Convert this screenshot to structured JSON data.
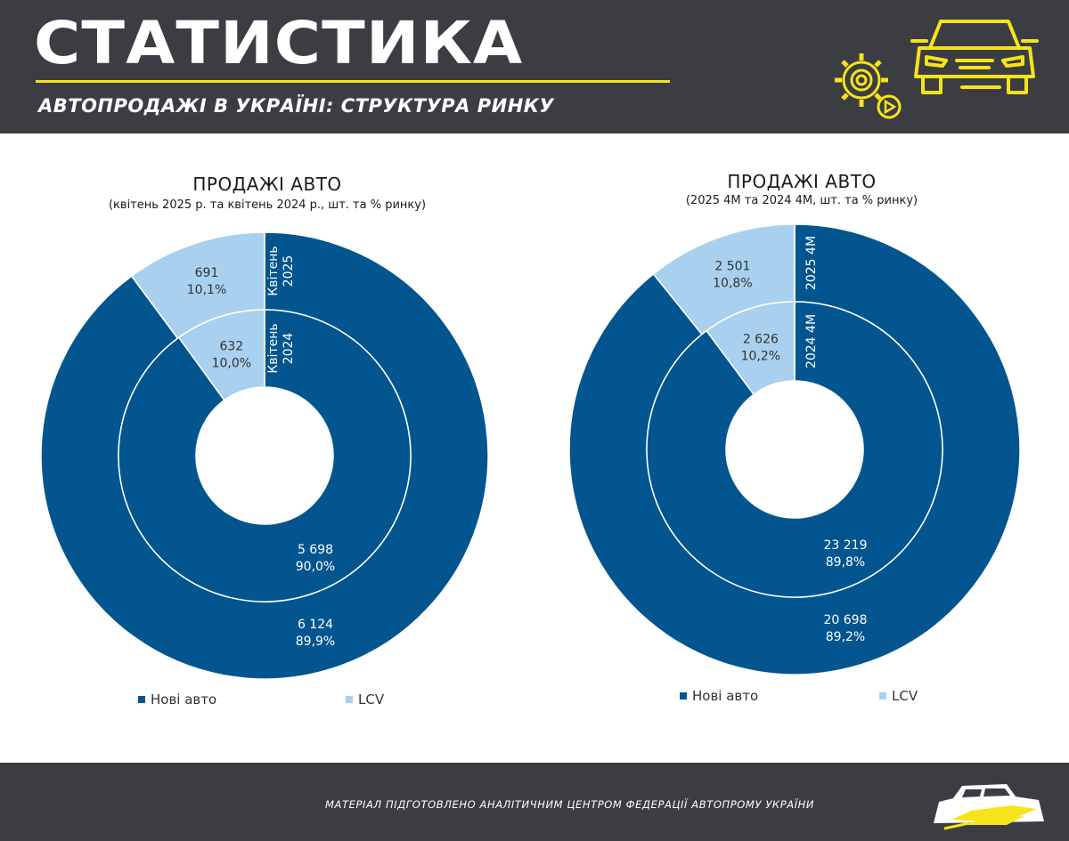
{
  "header": {
    "title": "СТАТИСТИКА",
    "subtitle": "АВТОПРОДАЖІ В УКРАЇНІ: СТРУКТУРА РИНКУ",
    "icons": [
      "gear-play-icon",
      "car-front-icon"
    ],
    "accent_color": "#f6e31a",
    "background_color": "#3b3d42"
  },
  "legend": {
    "new_cars": "Нові авто",
    "lcv": "LCV",
    "new_cars_color": "#02558f",
    "lcv_color": "#a9d0ef"
  },
  "chart_data": [
    {
      "type": "donut",
      "title": "ПРОДАЖІ АВТО",
      "subtitle": "(квітень 2025 р. та квітень 2024 р., шт. та % ринку)",
      "rings": [
        {
          "name": "Квітень 2025",
          "position": "outer",
          "slices": [
            {
              "category": "Нові авто",
              "value": 6124,
              "value_label": "6 124",
              "percent_label": "89,9%"
            },
            {
              "category": "LCV",
              "value": 691,
              "value_label": "691",
              "percent_label": "10,1%"
            }
          ]
        },
        {
          "name": "Квітень 2024",
          "position": "inner",
          "slices": [
            {
              "category": "Нові авто",
              "value": 5698,
              "value_label": "5 698",
              "percent_label": "90,0%"
            },
            {
              "category": "LCV",
              "value": 632,
              "value_label": "632",
              "percent_label": "10,0%"
            }
          ]
        }
      ],
      "legend": [
        "Нові авто",
        "LCV"
      ]
    },
    {
      "type": "donut",
      "title": "ПРОДАЖІ АВТО",
      "subtitle": "(2025 4М та 2024 4М, шт. та % ринку)",
      "rings": [
        {
          "name": "2025 4М",
          "position": "outer",
          "slices": [
            {
              "category": "Нові авто",
              "value": 20698,
              "value_label": "20 698",
              "percent_label": "89,2%"
            },
            {
              "category": "LCV",
              "value": 2501,
              "value_label": "2 501",
              "percent_label": "10,8%"
            }
          ]
        },
        {
          "name": "2024 4М",
          "position": "inner",
          "slices": [
            {
              "category": "Нові авто",
              "value": 23219,
              "value_label": "23 219",
              "percent_label": "89,8%"
            },
            {
              "category": "LCV",
              "value": 2626,
              "value_label": "2 626",
              "percent_label": "10,2%"
            }
          ]
        }
      ],
      "legend": [
        "Нові авто",
        "LCV"
      ]
    }
  ],
  "footer": {
    "text": "МАТЕРІАЛ ПІДГОТОВЛЕНО АНАЛІТИЧНИМ ЦЕНТРОМ ФЕДЕРАЦІЇ АВТОПРОМУ УКРАЇНИ",
    "logo": "car-silhouette-logo"
  }
}
